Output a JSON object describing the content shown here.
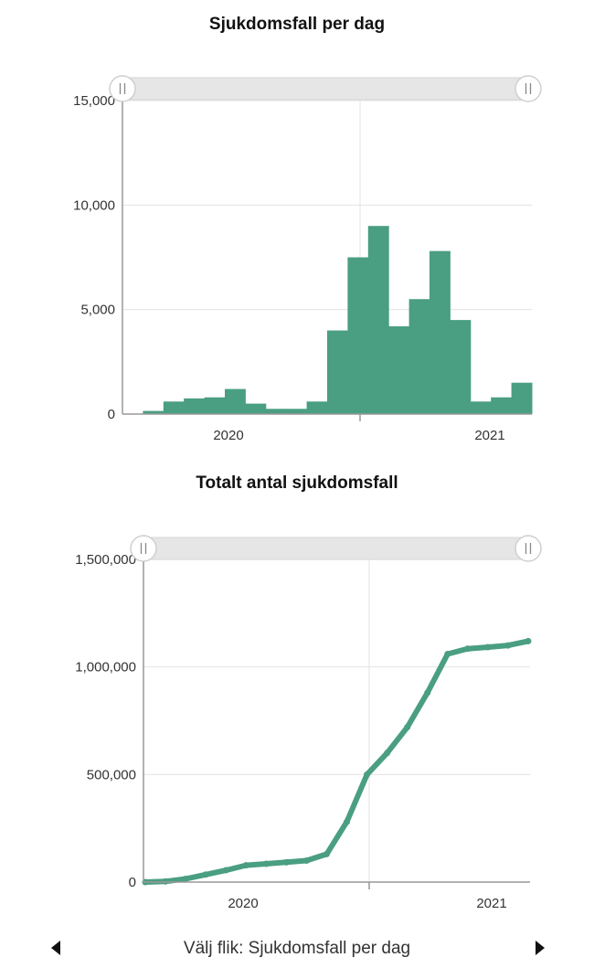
{
  "colors": {
    "series": "#4a9e82",
    "grid": "#e3e3e3",
    "axis": "#999999",
    "slider": "#e6e6e6"
  },
  "footer": {
    "label": "Välj flik: Sjukdomsfall per dag",
    "prev_icon": "triangle-left-icon",
    "next_icon": "triangle-right-icon"
  },
  "chart_data": [
    {
      "type": "bar",
      "title": "Sjukdomsfall per dag",
      "xlabel": "",
      "ylabel": "",
      "ylim": [
        0,
        15000
      ],
      "yticks": [
        0,
        5000,
        10000,
        15000
      ],
      "ytick_labels": [
        "0",
        "5,000",
        "10,000",
        "15,000"
      ],
      "xtick_labels": [
        "2020",
        "2021"
      ],
      "x_range_months": [
        "2019-08",
        "2021-03"
      ],
      "grid": true,
      "x": [
        "2019-08",
        "2019-09",
        "2019-10",
        "2019-11",
        "2019-12",
        "2020-01",
        "2020-02",
        "2020-03",
        "2020-04",
        "2020-05",
        "2020-06",
        "2020-07",
        "2020-08",
        "2020-09",
        "2020-10",
        "2020-11",
        "2020-12",
        "2021-01",
        "2021-02",
        "2021-03"
      ],
      "values": [
        0,
        150,
        600,
        750,
        800,
        1200,
        500,
        250,
        250,
        600,
        4000,
        7500,
        9000,
        4200,
        5500,
        7800,
        4500,
        600,
        800,
        1500
      ]
    },
    {
      "type": "line",
      "title": "Totalt antal sjukdomsfall",
      "xlabel": "",
      "ylabel": "",
      "ylim": [
        0,
        1500000
      ],
      "yticks": [
        0,
        500000,
        1000000,
        1500000
      ],
      "ytick_labels": [
        "0",
        "500,000",
        "1,000,000",
        "1,500,000"
      ],
      "xtick_labels": [
        "2020",
        "2021"
      ],
      "grid": true,
      "x": [
        "2019-08",
        "2019-09",
        "2019-10",
        "2019-11",
        "2019-12",
        "2020-01",
        "2020-02",
        "2020-03",
        "2020-04",
        "2020-05",
        "2020-06",
        "2020-07",
        "2020-08",
        "2020-09",
        "2020-10",
        "2020-11",
        "2020-12",
        "2021-01",
        "2021-02",
        "2021-03"
      ],
      "values": [
        0,
        3000,
        15000,
        35000,
        55000,
        78000,
        85000,
        92000,
        100000,
        130000,
        280000,
        500000,
        600000,
        720000,
        880000,
        1060000,
        1085000,
        1092000,
        1100000,
        1120000
      ]
    }
  ]
}
